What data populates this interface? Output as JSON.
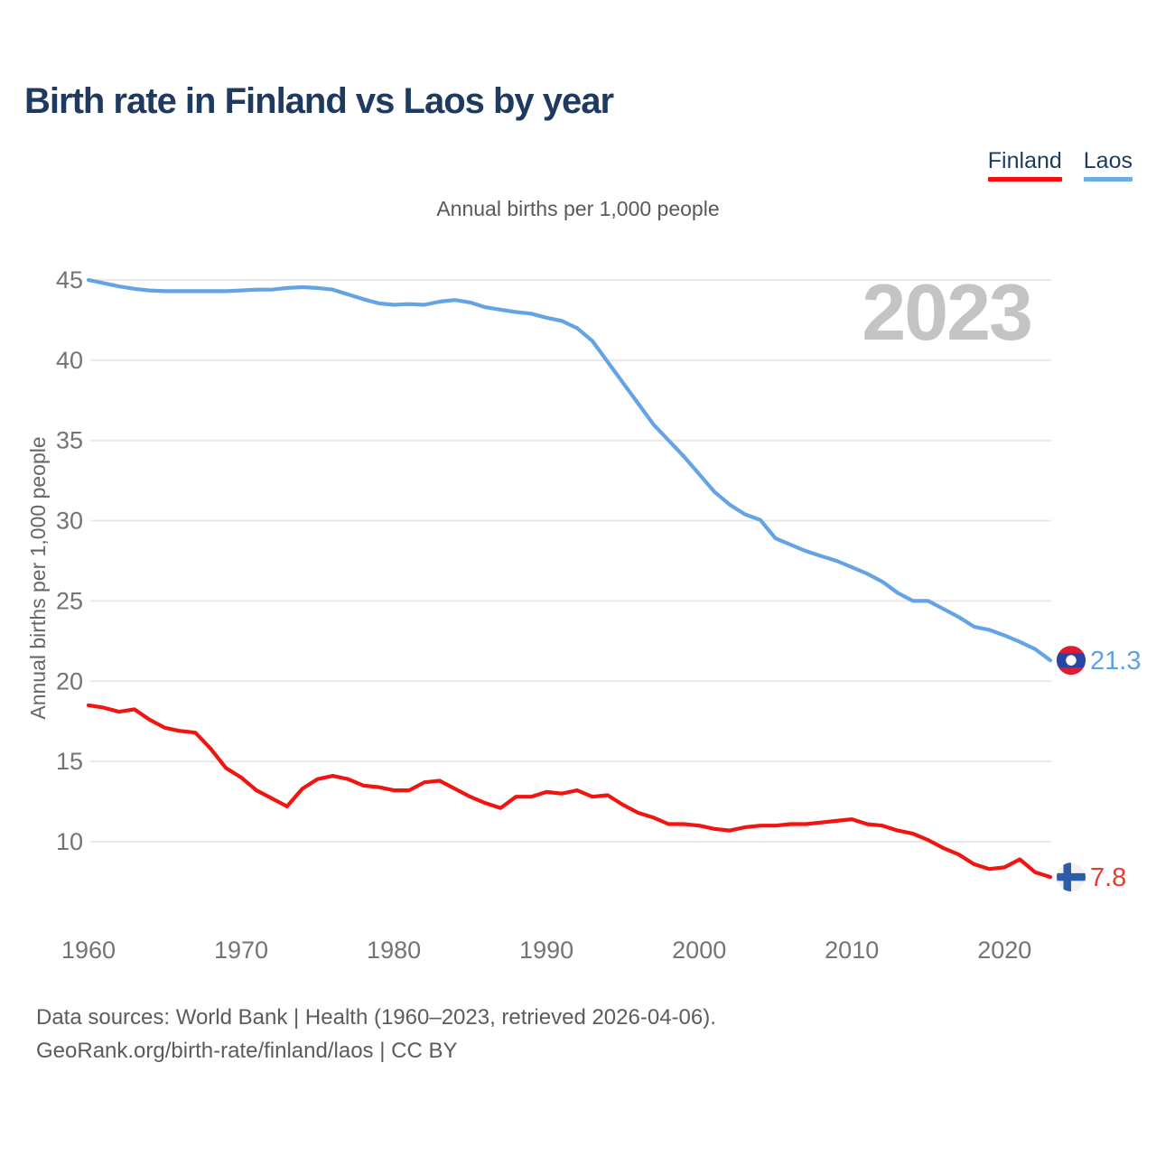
{
  "header": {
    "title": "Birth rate in Finland vs Laos by year"
  },
  "legend": {
    "items": [
      {
        "label": "Finland",
        "color": "#f40d0d"
      },
      {
        "label": "Laos",
        "color": "#6cade8"
      }
    ]
  },
  "chart": {
    "subtitle": "Annual births per 1,000 people"
  },
  "chart_data": {
    "type": "line",
    "title": "Birth rate in Finland vs Laos by year",
    "subtitle": "Annual births per 1,000 people",
    "ylabel": "Annual births per 1,000 people",
    "watermark": "2023",
    "x_start": 1960,
    "x_end": 2023,
    "x_ticks": [
      1960,
      1970,
      1980,
      1990,
      2000,
      2010,
      2020
    ],
    "y_ticks": [
      10,
      15,
      20,
      25,
      30,
      35,
      40,
      45
    ],
    "ylim": [
      7,
      47
    ],
    "grid": "horizontal",
    "legend_position": "top-right",
    "series": [
      {
        "name": "Finland",
        "color": "#f01511",
        "label_color": "#e63c32",
        "end_label": "7.8",
        "end_value": 7.8,
        "flag": "finland-flag",
        "flag_colors": {
          "bg": "#f2f2f2",
          "cross": "#2d5ca8"
        },
        "values": [
          18.5,
          18.35,
          18.1,
          18.25,
          17.6,
          17.1,
          16.9,
          16.8,
          15.8,
          14.6,
          14.0,
          13.2,
          12.7,
          12.2,
          13.3,
          13.9,
          14.1,
          13.9,
          13.5,
          13.4,
          13.2,
          13.2,
          13.7,
          13.8,
          13.3,
          12.8,
          12.4,
          12.1,
          12.8,
          12.8,
          13.1,
          13.0,
          13.2,
          12.8,
          12.9,
          12.3,
          11.8,
          11.5,
          11.1,
          11.1,
          11.0,
          10.8,
          10.7,
          10.9,
          11.0,
          11.0,
          11.1,
          11.1,
          11.2,
          11.3,
          11.4,
          11.1,
          11.0,
          10.7,
          10.5,
          10.1,
          9.6,
          9.2,
          8.6,
          8.3,
          8.4,
          8.9,
          8.1,
          7.8
        ]
      },
      {
        "name": "Laos",
        "color": "#64a3e4",
        "label_color": "#5ba2e8",
        "end_label": "21.3",
        "end_value": 21.3,
        "flag": "laos-flag",
        "flag_colors": {
          "red": "#e01b31",
          "band": "#2845a5",
          "disc": "#ffffff"
        },
        "values": [
          45.0,
          44.8,
          44.6,
          44.45,
          44.35,
          44.3,
          44.3,
          44.3,
          44.3,
          44.3,
          44.35,
          44.4,
          44.4,
          44.5,
          44.55,
          44.5,
          44.4,
          44.1,
          43.8,
          43.55,
          43.45,
          43.5,
          43.45,
          43.65,
          43.75,
          43.6,
          43.3,
          43.15,
          43.0,
          42.9,
          42.65,
          42.45,
          42.0,
          41.2,
          39.9,
          38.6,
          37.3,
          36.0,
          35.0,
          34.0,
          32.9,
          31.8,
          31.0,
          30.4,
          30.05,
          28.9,
          28.5,
          28.1,
          27.8,
          27.5,
          27.1,
          26.7,
          26.2,
          25.5,
          25.0,
          25.0,
          24.5,
          24.0,
          23.4,
          23.2,
          22.85,
          22.45,
          22.0,
          21.3
        ]
      }
    ]
  },
  "footer": {
    "line1": "Data sources: World Bank | Health (1960–2023, retrieved 2026-04-06).",
    "line2": "GeoRank.org/birth-rate/finland/laos | CC BY"
  }
}
